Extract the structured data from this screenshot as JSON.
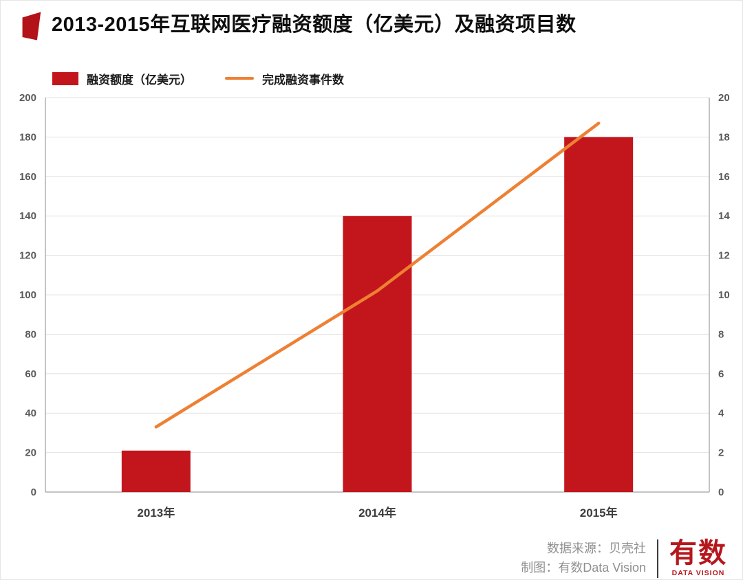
{
  "header": {
    "title": "2013-2015年互联网医疗融资额度（亿美元）及融资项目数"
  },
  "legend": {
    "bar_label": "融资额度（亿美元）",
    "line_label": "完成融资事件数"
  },
  "chart_data": {
    "type": "bar+line",
    "categories": [
      "2013年",
      "2014年",
      "2015年"
    ],
    "series": [
      {
        "name": "融资额度（亿美元）",
        "type": "bar",
        "axis": "left",
        "values": [
          21,
          140,
          180
        ],
        "color": "#c3161c"
      },
      {
        "name": "完成融资事件数",
        "type": "line",
        "axis": "right",
        "values": [
          3.3,
          10.2,
          18.7
        ],
        "color": "#ee8033"
      }
    ],
    "left_axis": {
      "min": 0,
      "max": 200,
      "step": 20
    },
    "right_axis": {
      "min": 0,
      "max": 20,
      "step": 2
    },
    "grid": true,
    "legend_position": "top-left",
    "title": "2013-2015年互联网医疗融资额度（亿美元）及融资项目数"
  },
  "footer": {
    "source": "数据来源：贝壳社",
    "credit": "制图：有数Data Vision",
    "logo_title": "有数",
    "logo_subtitle": "DATA VISION"
  },
  "colors": {
    "bar": "#c3161c",
    "line": "#ee8033",
    "grid": "#e3e3e3",
    "axis_line": "#b0b0b0",
    "axis_text": "#595959",
    "title_color": "#0d0d0d",
    "footer_text": "#8f8f8f",
    "logo_red": "#b5171c",
    "flag": "#b31318"
  }
}
